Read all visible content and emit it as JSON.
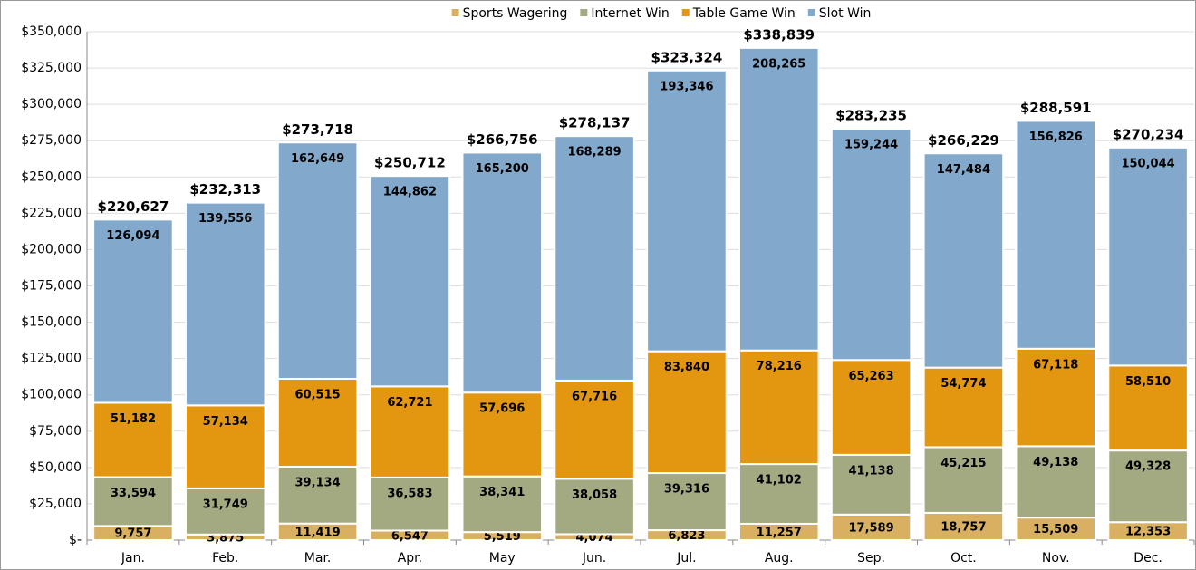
{
  "chart_data": {
    "type": "stacked_bar",
    "categories": [
      "Jan.",
      "Feb.",
      "Mar.",
      "Apr.",
      "May",
      "Jun.",
      "Jul.",
      "Aug.",
      "Sep.",
      "Oct.",
      "Nov.",
      "Dec."
    ],
    "series": [
      {
        "name": "Sports Wagering",
        "color": "#d9b061",
        "values": [
          9757,
          3875,
          11419,
          6547,
          5519,
          4074,
          6823,
          11257,
          17589,
          18757,
          15509,
          12353
        ],
        "value_labels": [
          "9,757",
          "3,875",
          "11,419",
          "6,547",
          "5,519",
          "4,074",
          "6,823",
          "11,257",
          "17,589",
          "18,757",
          "15,509",
          "12,353"
        ]
      },
      {
        "name": "Internet Win",
        "color": "#a3aa82",
        "values": [
          33594,
          31749,
          39134,
          36583,
          38341,
          38058,
          39316,
          41102,
          41138,
          45215,
          49138,
          49328
        ],
        "value_labels": [
          "33,594",
          "31,749",
          "39,134",
          "36,583",
          "38,341",
          "38,058",
          "39,316",
          "41,102",
          "41,138",
          "45,215",
          "49,138",
          "49,328"
        ]
      },
      {
        "name": "Table Game Win",
        "color": "#e3960f",
        "values": [
          51182,
          57134,
          60515,
          62721,
          57696,
          67716,
          83840,
          78216,
          65263,
          54774,
          67118,
          58510
        ],
        "value_labels": [
          "51,182",
          "57,134",
          "60,515",
          "62,721",
          "57,696",
          "67,716",
          "83,840",
          "78,216",
          "65,263",
          "54,774",
          "67,118",
          "58,510"
        ]
      },
      {
        "name": "Slot Win",
        "color": "#82a8cb",
        "values": [
          126094,
          139556,
          162649,
          144862,
          165200,
          168289,
          193346,
          208265,
          159244,
          147484,
          156826,
          150044
        ],
        "value_labels": [
          "126,094",
          "139,556",
          "162,649",
          "144,862",
          "165,200",
          "168,289",
          "193,346",
          "208,265",
          "159,244",
          "147,484",
          "156,826",
          "150,044"
        ]
      }
    ],
    "totals": {
      "values": [
        220627,
        232313,
        273718,
        250712,
        266756,
        278137,
        323324,
        338839,
        283235,
        266229,
        288591,
        270234
      ],
      "value_labels": [
        "$220,627",
        "$232,313",
        "$273,718",
        "$250,712",
        "$266,756",
        "$278,137",
        "$323,324",
        "$338,839",
        "$283,235",
        "$266,229",
        "$288,591",
        "$270,234"
      ]
    },
    "ylim": [
      0,
      350000
    ],
    "yticks": [
      {
        "value": 0,
        "label": "$-"
      },
      {
        "value": 25000,
        "label": "$25,000"
      },
      {
        "value": 50000,
        "label": "$50,000"
      },
      {
        "value": 75000,
        "label": "$75,000"
      },
      {
        "value": 100000,
        "label": "$100,000"
      },
      {
        "value": 125000,
        "label": "$125,000"
      },
      {
        "value": 150000,
        "label": "$150,000"
      },
      {
        "value": 175000,
        "label": "$175,000"
      },
      {
        "value": 200000,
        "label": "$200,000"
      },
      {
        "value": 225000,
        "label": "$225,000"
      },
      {
        "value": 250000,
        "label": "$250,000"
      },
      {
        "value": 275000,
        "label": "$275,000"
      },
      {
        "value": 300000,
        "label": "$300,000"
      },
      {
        "value": 325000,
        "label": "$325,000"
      },
      {
        "value": 350000,
        "label": "$350,000"
      }
    ],
    "grid": true,
    "legend": "top"
  }
}
